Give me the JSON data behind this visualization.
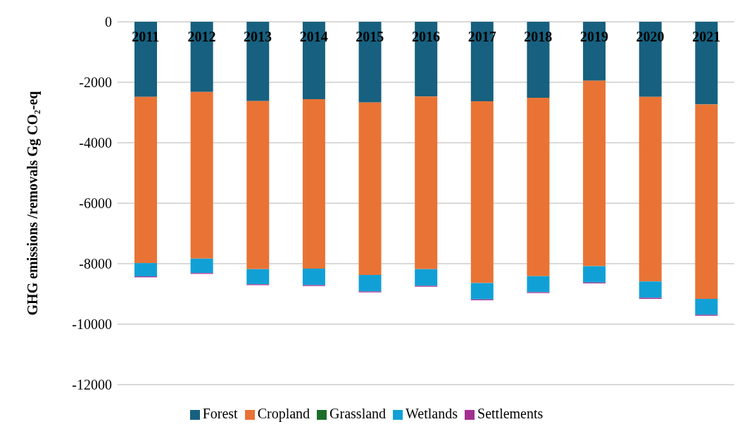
{
  "chart_data": {
    "type": "bar",
    "stacked": true,
    "ylabel": "GHG emissions /removals  Gg CO₂-eq",
    "categories": [
      "2011",
      "2012",
      "2013",
      "2014",
      "2015",
      "2016",
      "2017",
      "2018",
      "2019",
      "2020",
      "2021"
    ],
    "series": [
      {
        "name": "Forest",
        "color": "#17607f",
        "values": [
          -2480,
          -2320,
          -2620,
          -2560,
          -2670,
          -2470,
          -2630,
          -2510,
          -1950,
          -2480,
          -2730
        ]
      },
      {
        "name": "Cropland",
        "color": "#e97334",
        "values": [
          -5500,
          -5510,
          -5560,
          -5600,
          -5700,
          -5710,
          -6010,
          -5900,
          -6130,
          -6110,
          -6430
        ]
      },
      {
        "name": "Grassland",
        "color": "#1b6e2a",
        "values": [
          0,
          0,
          0,
          0,
          0,
          0,
          0,
          0,
          0,
          0,
          0
        ]
      },
      {
        "name": "Wetlands",
        "color": "#11a0d6",
        "values": [
          -440,
          -480,
          -500,
          -550,
          -550,
          -550,
          -540,
          -530,
          -540,
          -540,
          -530
        ]
      },
      {
        "name": "Settlements",
        "color": "#a2308f",
        "values": [
          -30,
          -30,
          -30,
          -30,
          -30,
          -30,
          -30,
          -30,
          -30,
          -30,
          -30
        ]
      }
    ],
    "ylim": [
      -12000,
      0
    ],
    "yticks": [
      0,
      -2000,
      -4000,
      -6000,
      -8000,
      -10000,
      -12000
    ],
    "grid": "y",
    "legend": "bottom"
  }
}
